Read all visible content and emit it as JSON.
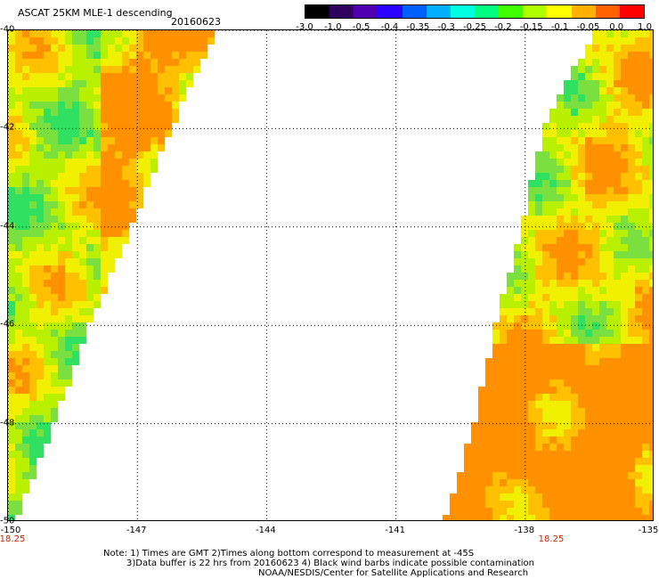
{
  "header": {
    "title": "ASCAT 25KM MLE-1 descending",
    "date": "20160623"
  },
  "colorbar": {
    "labels": [
      "-3.0",
      "-1.0",
      "-0.5",
      "-0.4",
      "-0.35",
      "-0.3",
      "-0.25",
      "-0.2",
      "-0.15",
      "-0.1",
      "-0.05",
      "0.0",
      "1.0"
    ],
    "colors": [
      "#000000",
      "#300060",
      "#5000b0",
      "#2a00ff",
      "#0060ff",
      "#00b0ff",
      "#00ffe0",
      "#00ff80",
      "#40ff00",
      "#b0ff00",
      "#ffff00",
      "#ffb000",
      "#ff6000",
      "#ff0000"
    ]
  },
  "map": {
    "lat_labels": [
      "-40",
      "-42",
      "-44",
      "-46",
      "-48",
      "-50"
    ],
    "lon_labels": [
      "-150",
      "-147",
      "-144",
      "-141",
      "-138",
      "-135"
    ],
    "time_labels": [
      "18.25",
      "18.25"
    ],
    "lat_range": [
      -50,
      -40
    ],
    "lon_range": [
      -150,
      -135
    ],
    "left_swath": [
      {
        "lat": -40,
        "lon_min": -150,
        "lon_max": -145.2
      },
      {
        "lat": -42,
        "lon_min": -150,
        "lon_max": -146.3
      },
      {
        "lat": -44,
        "lon_min": -150,
        "lon_max": -147.2
      },
      {
        "lat": -46,
        "lon_min": -150,
        "lon_max": -148.2
      },
      {
        "lat": -48,
        "lon_min": -150,
        "lon_max": -149.0
      },
      {
        "lat": -50,
        "lon_min": -150,
        "lon_max": -149.9
      }
    ],
    "right_swath": [
      {
        "lat": -40,
        "lon_min": -136.3,
        "lon_max": -135
      },
      {
        "lat": -42,
        "lon_min": -137.5,
        "lon_max": -135
      },
      {
        "lat": -44,
        "lon_min": -138.0,
        "lon_max": -135
      },
      {
        "lat": -46,
        "lon_min": -138.6,
        "lon_max": -135
      },
      {
        "lat": -48,
        "lon_min": -139.1,
        "lon_max": -135
      },
      {
        "lat": -50,
        "lon_min": -139.8,
        "lon_max": -135
      }
    ]
  },
  "notes": {
    "line1": "Note: 1) Times are GMT 2)Times along bottom correspond to measurement at -45S",
    "line2": "3)Data buffer is 22 hrs from 20160623 4) Black wind barbs indicate possible contamination",
    "line3": "NOAA/NESDIS/Center for Satellite Applications and Research"
  }
}
